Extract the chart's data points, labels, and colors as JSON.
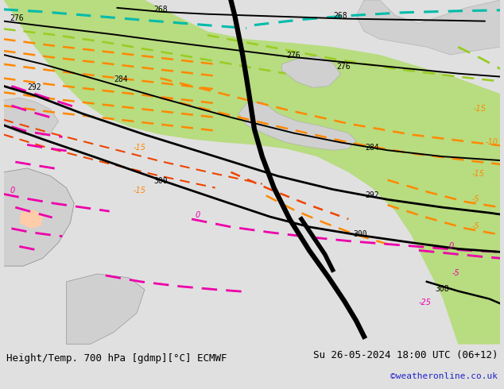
{
  "title_left": "Height/Temp. 700 hPa [gdmp][°C] ECMWF",
  "title_right": "Su 26-05-2024 18:00 UTC (06+12)",
  "credit": "©weatheronline.co.uk",
  "bg_color": "#e0e0e0",
  "land_gray": "#d0d0d0",
  "land_green": "#b8dc80",
  "sea_color": "#d0dce8",
  "title_fontsize": 9,
  "credit_fontsize": 8,
  "credit_color": "#2222cc",
  "figsize": [
    6.34,
    4.9
  ],
  "dpi": 100,
  "black": "#000000",
  "orange": "#ff8800",
  "red_orange": "#ee4400",
  "magenta": "#ee00aa",
  "cyan": "#00bbaa",
  "lime": "#99cc22"
}
